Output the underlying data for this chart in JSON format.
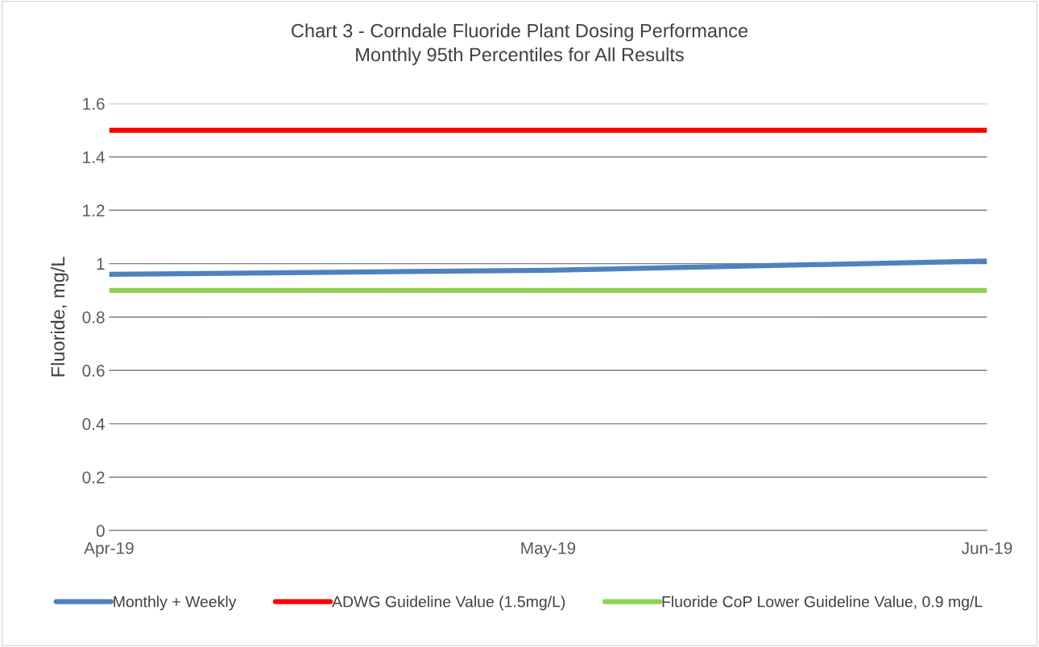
{
  "chart_data": {
    "type": "line",
    "title": "Chart 3 - Corndale Fluoride Plant Dosing Performance",
    "subtitle": "Monthly 95th Percentiles for All Results",
    "ylabel": "Fluoride, mg/L",
    "categories": [
      "Apr-19",
      "May-19",
      "Jun-19"
    ],
    "series": [
      {
        "name": "Monthly + Weekly",
        "color": "#4f81bd",
        "values": [
          0.96,
          0.975,
          1.01
        ]
      },
      {
        "name": "ADWG Guideline Value (1.5mg/L)",
        "color": "#ff0000",
        "values": [
          1.5,
          1.5,
          1.5
        ]
      },
      {
        "name": "Fluoride CoP Lower Guideline Value, 0.9 mg/L",
        "color": "#92d050",
        "values": [
          0.9,
          0.9,
          0.9
        ]
      }
    ],
    "ylim": [
      0,
      1.6
    ],
    "yticks": [
      0,
      0.2,
      0.4,
      0.6,
      0.8,
      1,
      1.2,
      1.4,
      1.6
    ],
    "grid": "y",
    "legend": "bottom",
    "marker": "none",
    "line_style": "solid"
  }
}
